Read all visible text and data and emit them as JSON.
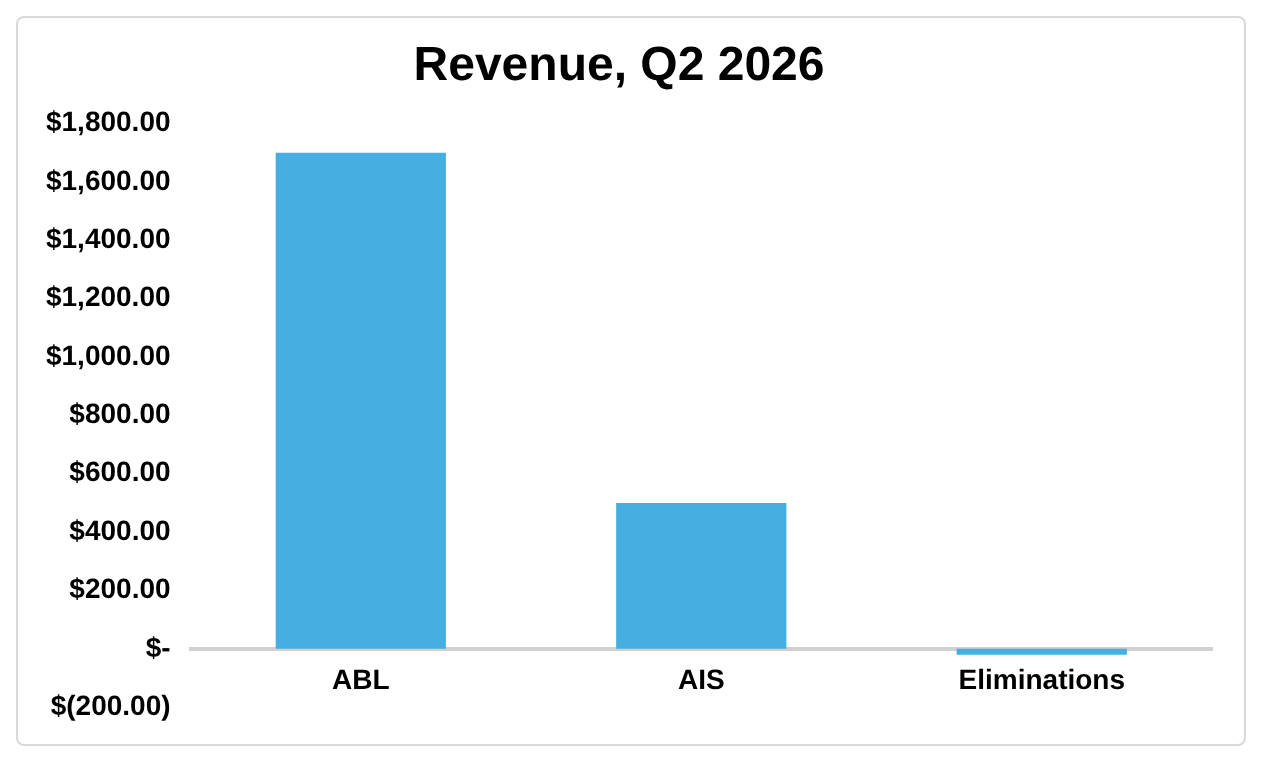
{
  "chart_data": {
    "type": "bar",
    "title": "Revenue, Q2 2026",
    "categories": [
      "ABL",
      "AIS",
      "Eliminations"
    ],
    "values": [
      1700,
      500,
      -20
    ],
    "color": "#46afe0",
    "ylim": [
      -200,
      1800
    ],
    "yticks": [
      {
        "value": -200,
        "label": "$(200.00)"
      },
      {
        "value": 0,
        "label": "$-"
      },
      {
        "value": 200,
        "label": "$200.00"
      },
      {
        "value": 400,
        "label": "$400.00"
      },
      {
        "value": 600,
        "label": "$600.00"
      },
      {
        "value": 800,
        "label": "$800.00"
      },
      {
        "value": 1000,
        "label": "$1,000.00"
      },
      {
        "value": 1200,
        "label": "$1,200.00"
      },
      {
        "value": 1400,
        "label": "$1,400.00"
      },
      {
        "value": 1600,
        "label": "$1,600.00"
      },
      {
        "value": 1800,
        "label": "$1,800.00"
      }
    ],
    "grid": false,
    "legend": false
  }
}
